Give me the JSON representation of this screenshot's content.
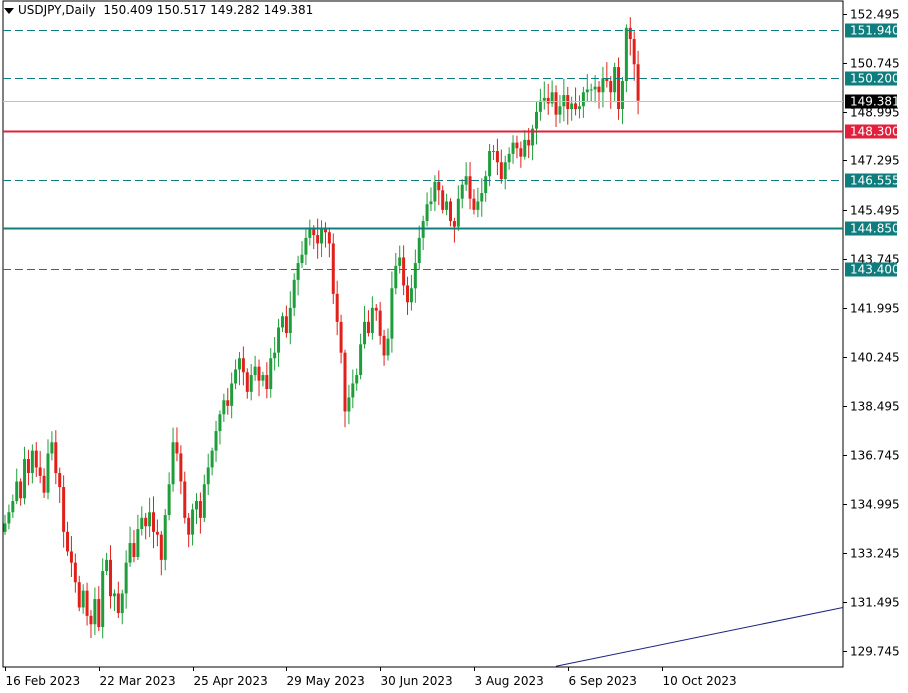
{
  "header": {
    "symbol": "USDJPY,Daily",
    "open": "150.409",
    "high": "150.517",
    "low": "149.282",
    "close": "149.381"
  },
  "colors": {
    "bull": "#1e9e3a",
    "bear": "#e0201a",
    "level_dashed": "#0f7d7d",
    "level_red": "#e0203c",
    "level_teal": "#0f7d7d",
    "current_price": "#000000",
    "trendline": "#1a237e"
  },
  "chart_data": {
    "type": "candlestick",
    "y_ticks": [
      "152.495",
      "150.745",
      "148.995",
      "147.295",
      "145.495",
      "143.745",
      "141.995",
      "140.245",
      "138.495",
      "136.745",
      "134.995",
      "133.245",
      "131.495",
      "129.745"
    ],
    "x_ticks": [
      "16 Feb 2023",
      "22 Mar 2023",
      "25 Apr 2023",
      "29 May 2023",
      "30 Jun 2023",
      "3 Aug 2023",
      "6 Sep 2023",
      "10 Oct 2023"
    ],
    "ylim": [
      129.2,
      152.9
    ],
    "levels": [
      {
        "price": 151.94,
        "label": "151.940",
        "style": "dashed",
        "color": "#0f7d7d"
      },
      {
        "price": 150.2,
        "label": "150.200",
        "style": "dashed",
        "color": "#0f7d7d"
      },
      {
        "price": 149.381,
        "label": "149.381",
        "style": "current",
        "color": "#000000"
      },
      {
        "price": 148.3,
        "label": "148.300",
        "style": "solid",
        "color": "#e0203c"
      },
      {
        "price": 146.555,
        "label": "146.555",
        "style": "dashed",
        "color": "#0f7d7d"
      },
      {
        "price": 144.85,
        "label": "144.850",
        "style": "solid",
        "color": "#0f7d7d"
      },
      {
        "price": 143.4,
        "label": "143.400",
        "style": "dashed",
        "color": "#0f7d7d"
      }
    ],
    "closes": [
      134.3,
      134.7,
      135.1,
      135.8,
      135.2,
      136.6,
      136.1,
      136.9,
      136.3,
      136.0,
      135.4,
      136.8,
      137.2,
      136.1,
      135.6,
      134.0,
      133.3,
      132.9,
      132.2,
      131.3,
      131.9,
      131.0,
      130.7,
      131.6,
      130.6,
      132.6,
      133.0,
      131.7,
      131.8,
      131.1,
      131.8,
      132.9,
      133.6,
      133.1,
      134.1,
      134.5,
      134.2,
      134.7,
      134.0,
      133.9,
      133.0,
      134.6,
      135.7,
      137.2,
      136.8,
      135.8,
      134.5,
      133.9,
      134.8,
      135.1,
      134.5,
      135.7,
      136.3,
      136.9,
      137.6,
      138.2,
      138.7,
      138.5,
      139.3,
      139.8,
      140.2,
      139.7,
      139.0,
      139.6,
      139.9,
      139.4,
      139.6,
      139.1,
      140.2,
      140.4,
      141.3,
      141.7,
      141.1,
      142.0,
      143.0,
      143.6,
      143.9,
      144.5,
      144.8,
      144.6,
      144.3,
      144.8,
      144.7,
      144.3,
      142.5,
      141.5,
      140.4,
      138.3,
      138.8,
      139.3,
      139.6,
      140.7,
      141.5,
      141.1,
      142.0,
      141.9,
      141.0,
      140.3,
      140.9,
      142.7,
      143.5,
      143.8,
      142.8,
      142.2,
      142.7,
      143.6,
      144.5,
      145.1,
      145.7,
      145.8,
      146.5,
      146.2,
      145.5,
      145.8,
      145.1,
      144.9,
      145.9,
      146.4,
      146.7,
      145.9,
      145.5,
      145.8,
      146.1,
      146.7,
      147.6,
      147.6,
      147.2,
      146.6,
      147.2,
      147.5,
      147.9,
      147.7,
      147.4,
      148.0,
      147.8,
      148.4,
      149.0,
      149.4,
      149.5,
      149.3,
      149.7,
      148.9,
      149.2,
      149.6,
      149.1,
      149.3,
      149.1,
      149.2,
      149.7,
      149.8,
      149.8,
      149.9,
      149.7,
      150.2,
      150.1,
      149.7,
      150.6,
      149.1,
      150.1,
      152.0,
      151.6,
      150.7,
      149.4
    ],
    "trendline": {
      "start": {
        "bar": 141,
        "price": 129.2
      },
      "end": {
        "bar": 215,
        "price": 131.3
      }
    }
  }
}
